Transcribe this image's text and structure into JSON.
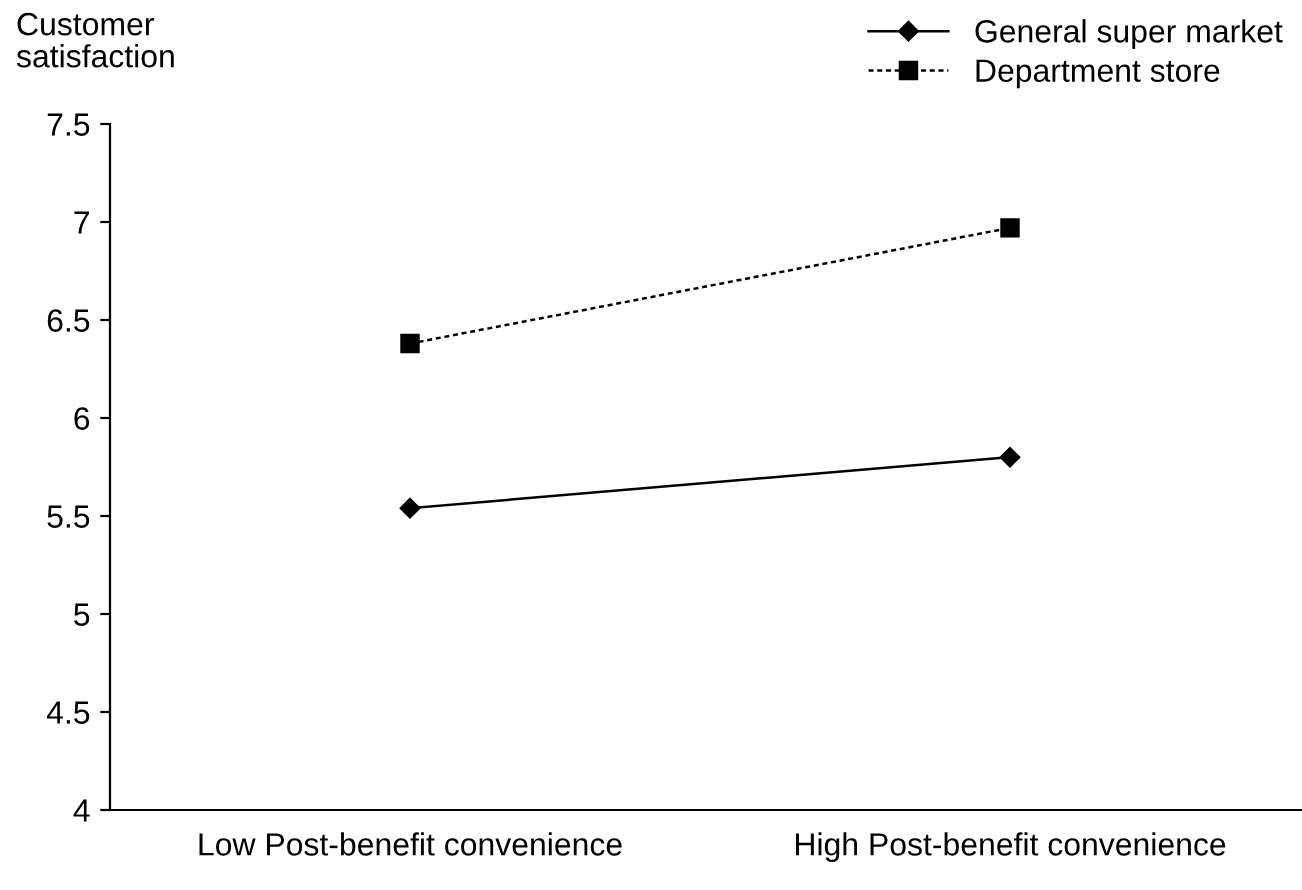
{
  "chart_data": {
    "type": "line",
    "ylabel": "Customer\nsatisfaction",
    "categories": [
      "Low Post-benefit convenience",
      "High Post-benefit convenience"
    ],
    "series": [
      {
        "name": "General super market",
        "color": "#000000",
        "values": [
          5.54,
          5.8
        ],
        "marker": "diamond",
        "line_style": "solid"
      },
      {
        "name": "Department store",
        "color": "#000000",
        "values": [
          6.38,
          6.97
        ],
        "marker": "square",
        "line_style": "dotted"
      }
    ],
    "ylim": [
      4,
      7.5
    ],
    "yticks": [
      4,
      4.5,
      5,
      5.5,
      6,
      6.5,
      7,
      7.5
    ],
    "grid": false,
    "legend": "top right"
  }
}
